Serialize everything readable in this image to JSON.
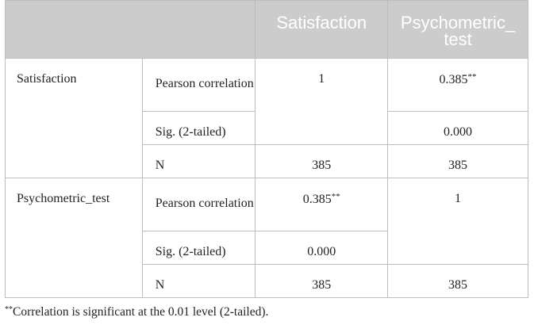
{
  "header": {
    "col1": "Satisfaction",
    "col2": "Psychometric_ test"
  },
  "rows": [
    {
      "label": "Satisfaction",
      "pearson_label": "Pearson correlation",
      "pearson_col1": "1",
      "pearson_col2": "0.385",
      "pearson_col2_mark": "**",
      "sig_label": "Sig. (2-tailed)",
      "sig_col2": "0.000",
      "n_label": "N",
      "n_col1": "385",
      "n_col2": "385"
    },
    {
      "label": "Psychometric_test",
      "pearson_label": "Pearson correlation",
      "pearson_col1": "0.385",
      "pearson_col1_mark": "**",
      "pearson_col2": "1",
      "sig_label": "Sig. (2-tailed)",
      "sig_col1": "0.000",
      "n_label": "N",
      "n_col1": "385",
      "n_col2": "385"
    }
  ],
  "footnote": {
    "mark": "**",
    "text": "Correlation is significant at the 0.01 level (2-tailed)."
  }
}
